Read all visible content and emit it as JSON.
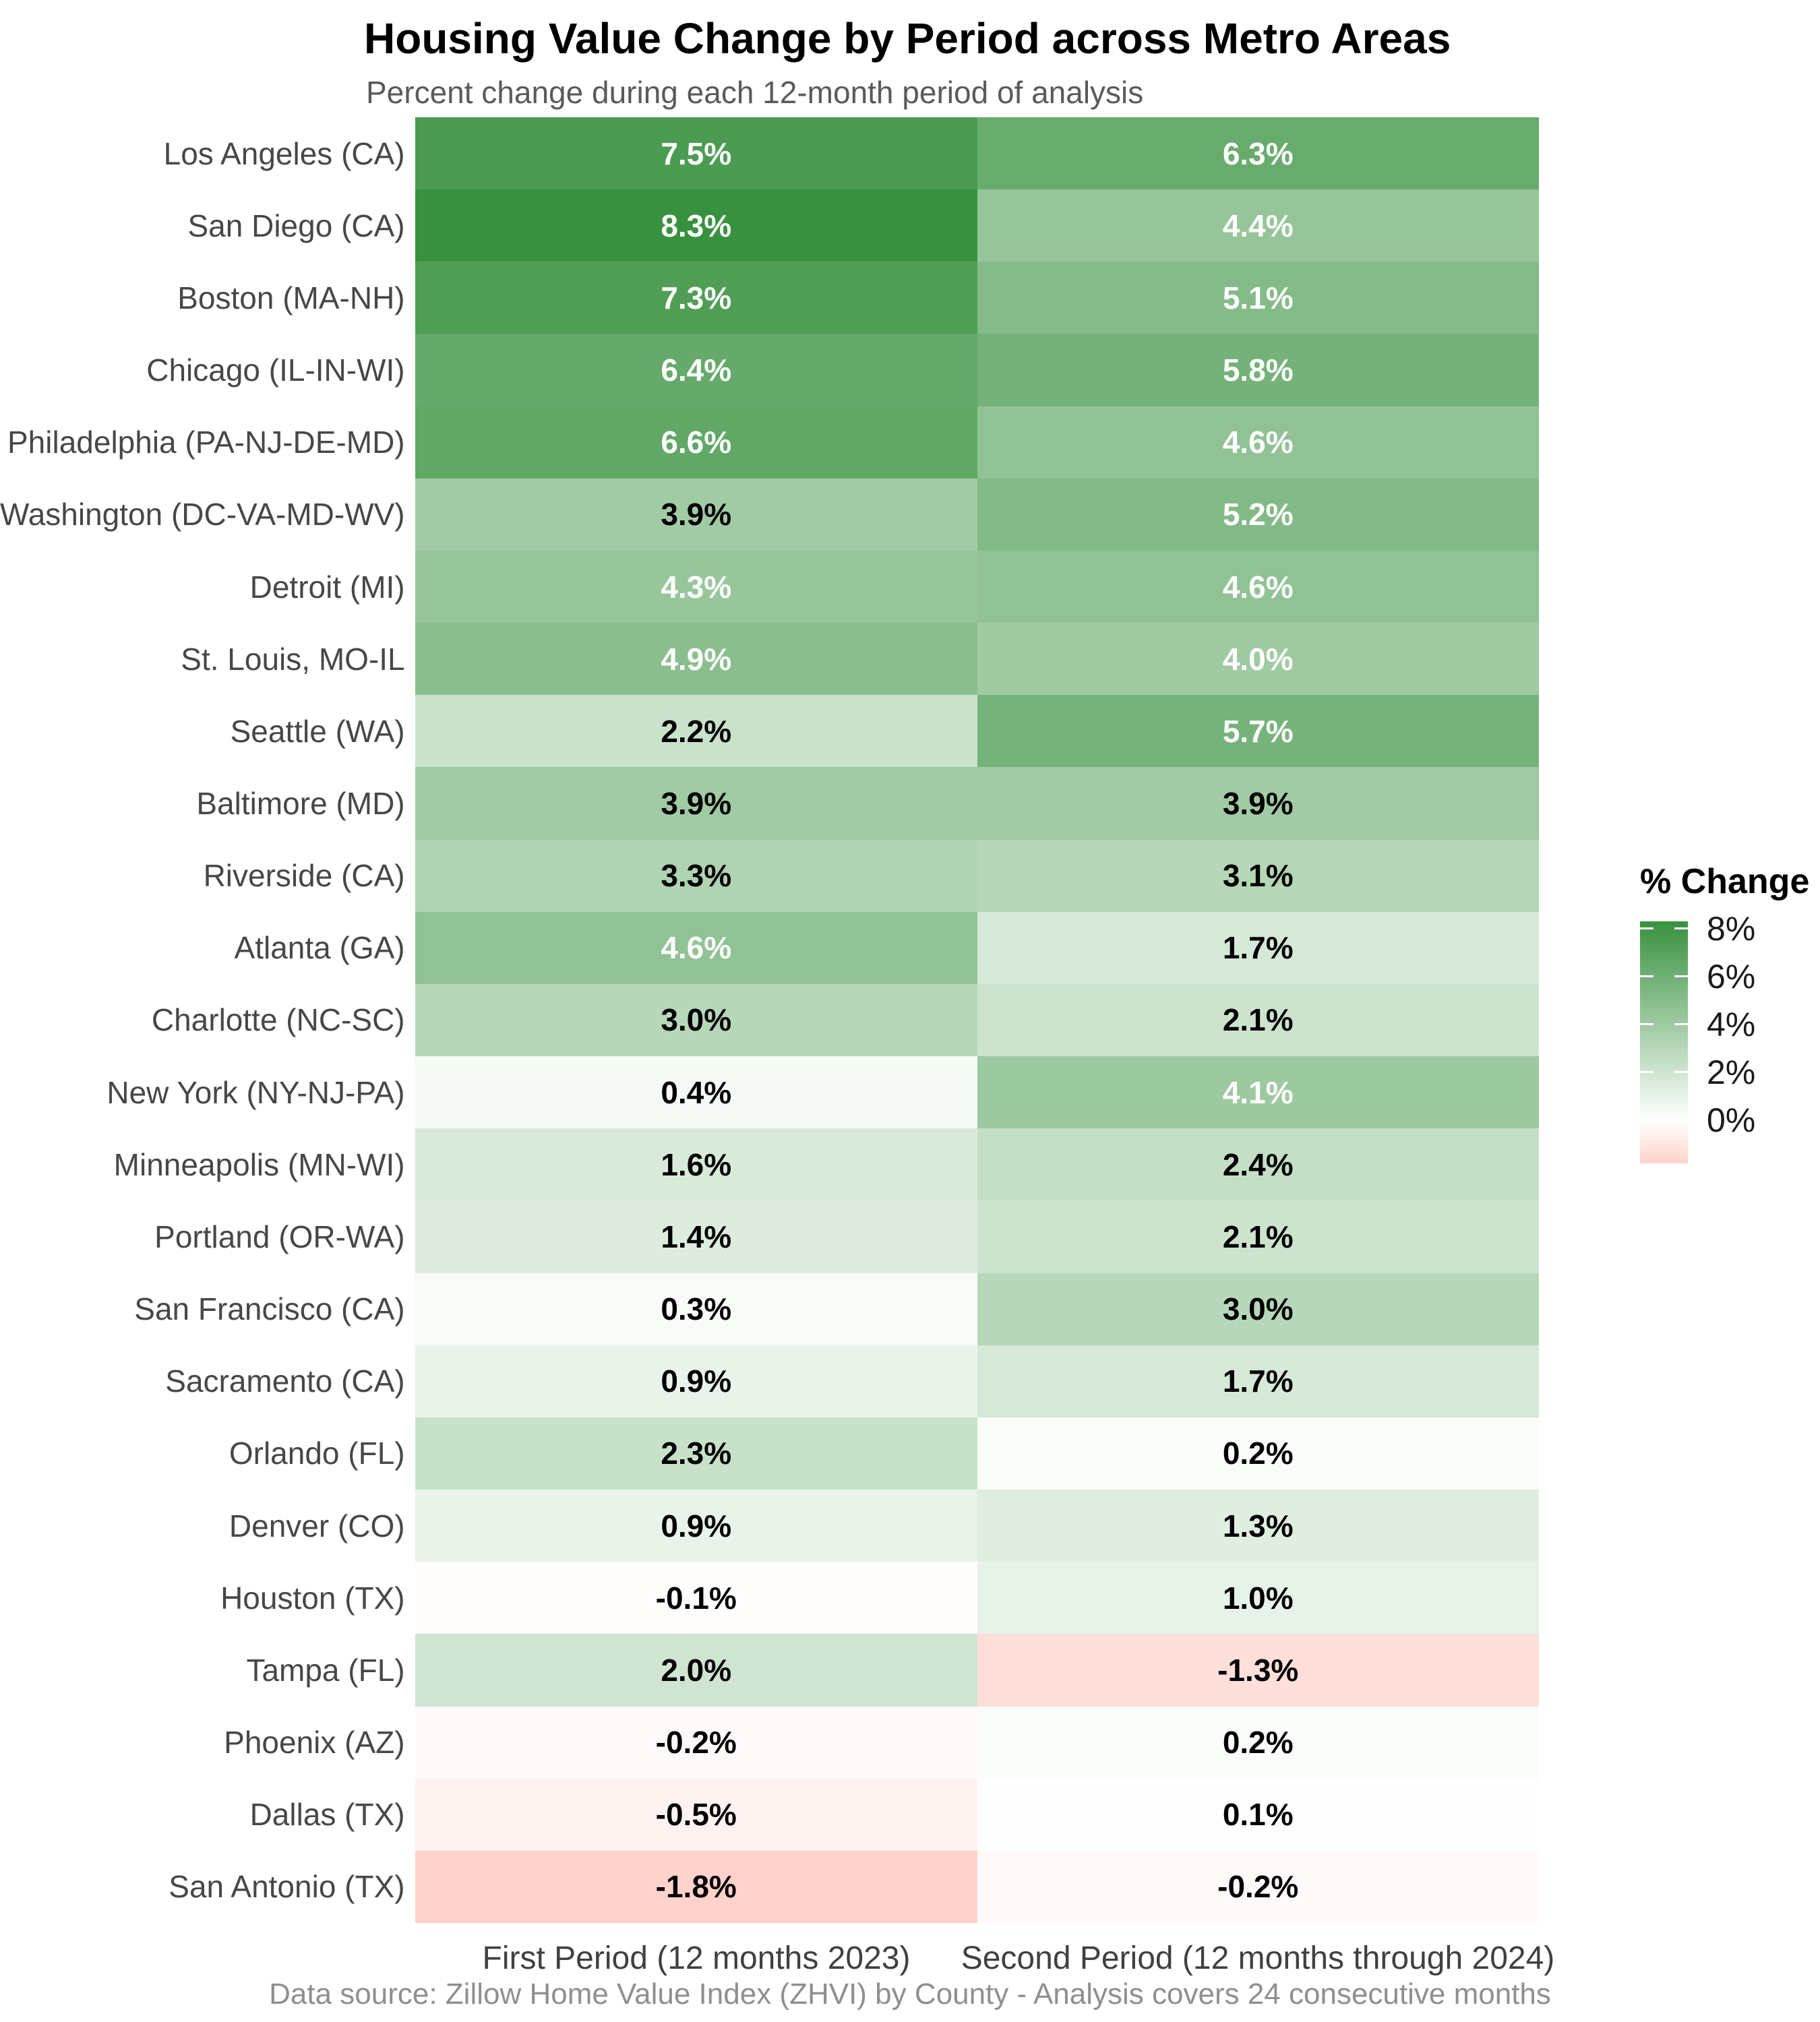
{
  "header": {
    "title": "Housing Value Change by Period across Metro Areas",
    "subtitle": "Percent change during each 12-month period of analysis"
  },
  "footer": {
    "caption": "Data source: Zillow Home Value Index (ZHVI) by County - Analysis covers 24 consecutive months"
  },
  "chart_data": {
    "type": "heatmap",
    "title": "Housing Value Change by Period across Metro Areas",
    "subtitle": "Percent change during each 12-month period of analysis",
    "caption": "Data source: Zillow Home Value Index (ZHVI) by County - Analysis covers 24 consecutive months",
    "x_categories": [
      "First Period (12 months 2023)",
      "Second Period (12 months through 2024)"
    ],
    "y_categories": [
      "Los Angeles (CA)",
      "San Diego (CA)",
      "Boston (MA-NH)",
      "Chicago (IL-IN-WI)",
      "Philadelphia (PA-NJ-DE-MD)",
      "Washington (DC-VA-MD-WV)",
      "Detroit (MI)",
      "St. Louis, MO-IL",
      "Seattle (WA)",
      "Baltimore (MD)",
      "Riverside (CA)",
      "Atlanta (GA)",
      "Charlotte (NC-SC)",
      "New York (NY-NJ-PA)",
      "Minneapolis (MN-WI)",
      "Portland (OR-WA)",
      "San Francisco (CA)",
      "Sacramento (CA)",
      "Orlando (FL)",
      "Denver (CO)",
      "Houston (TX)",
      "Tampa (FL)",
      "Phoenix (AZ)",
      "Dallas (TX)",
      "San Antonio (TX)"
    ],
    "values_pct": [
      [
        7.5,
        6.3
      ],
      [
        8.3,
        4.4
      ],
      [
        7.3,
        5.1
      ],
      [
        6.4,
        5.8
      ],
      [
        6.6,
        4.6
      ],
      [
        3.9,
        5.2
      ],
      [
        4.3,
        4.6
      ],
      [
        4.9,
        4.0
      ],
      [
        2.2,
        5.7
      ],
      [
        3.9,
        3.9
      ],
      [
        3.3,
        3.1
      ],
      [
        4.6,
        1.7
      ],
      [
        3.0,
        2.1
      ],
      [
        0.4,
        4.1
      ],
      [
        1.6,
        2.4
      ],
      [
        1.4,
        2.1
      ],
      [
        0.3,
        3.0
      ],
      [
        0.9,
        1.7
      ],
      [
        2.3,
        0.2
      ],
      [
        0.9,
        1.3
      ],
      [
        -0.1,
        1.0
      ],
      [
        2.0,
        -1.3
      ],
      [
        -0.2,
        0.2
      ],
      [
        -0.5,
        0.1
      ],
      [
        -1.8,
        -0.2
      ]
    ],
    "value_format_suffix": "%",
    "grid": false,
    "legend": {
      "title": "% Change",
      "position": "right",
      "tick_labels": [
        "8%",
        "6%",
        "4%",
        "2%",
        "0%"
      ],
      "tick_values": [
        8,
        6,
        4,
        2,
        0
      ],
      "domain_min": -1.8,
      "domain_max": 8.3
    },
    "style": {
      "color_high": "#38913f",
      "color_mid": "#ffffff",
      "color_low": "#ffd2cb",
      "white_label_min": 4.0,
      "label_color_dark": "#000000",
      "label_color_light": "#ffffff"
    }
  }
}
